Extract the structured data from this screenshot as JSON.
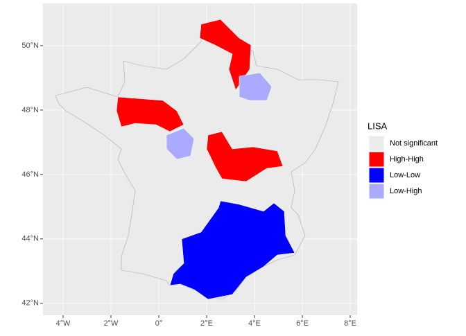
{
  "map": {
    "xticks": [
      {
        "value": -4,
        "label": "4°W"
      },
      {
        "value": -2,
        "label": "2°W"
      },
      {
        "value": 0,
        "label": "0°"
      },
      {
        "value": 2,
        "label": "2°E"
      },
      {
        "value": 4,
        "label": "4°E"
      },
      {
        "value": 6,
        "label": "6°E"
      },
      {
        "value": 8,
        "label": "8°E"
      }
    ],
    "yticks": [
      {
        "value": 42,
        "label": "42°N"
      },
      {
        "value": 44,
        "label": "44°N"
      },
      {
        "value": 46,
        "label": "46°N"
      },
      {
        "value": 48,
        "label": "48°N"
      },
      {
        "value": 50,
        "label": "50°N"
      }
    ],
    "xlim": [
      -4.84,
      8.29
    ],
    "ylim": [
      41.63,
      51.31
    ],
    "legend": {
      "title": "LISA",
      "items": [
        {
          "name": "Not significant",
          "color": "#EBEBEB"
        },
        {
          "name": "High-High",
          "color": "#FF0000"
        },
        {
          "name": "Low-Low",
          "color": "#0000FF"
        },
        {
          "name": "Low-High",
          "color": "#AAAAFF"
        }
      ]
    }
  }
}
